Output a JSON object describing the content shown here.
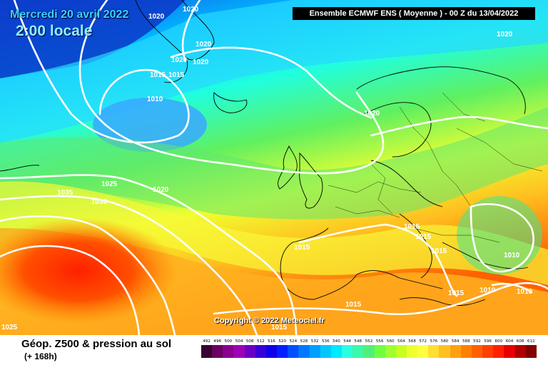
{
  "header": {
    "date": "Mercredi 20 avril 2022",
    "time": "2:00 locale",
    "model": "Ensemble ECMWF ENS  ( Moyenne )  -  00 Z du 13/04/2022"
  },
  "copyright": "Copyright © 2022 Meteociel.fr",
  "legend": {
    "title": "Géop. Z500 & pression au sol",
    "subtitle": "(+ 168h)",
    "scale_labels": [
      "492",
      "496",
      "500",
      "504",
      "508",
      "512",
      "516",
      "520",
      "524",
      "528",
      "532",
      "536",
      "540",
      "544",
      "548",
      "552",
      "556",
      "560",
      "564",
      "568",
      "572",
      "576",
      "580",
      "584",
      "588",
      "592",
      "596",
      "600",
      "604",
      "608",
      "612"
    ],
    "scale_colors": [
      "#3a0032",
      "#6a0060",
      "#8a0090",
      "#a000b8",
      "#6a00c8",
      "#3800d8",
      "#1000e8",
      "#0020ff",
      "#0050ff",
      "#0078ff",
      "#00a0ff",
      "#00c8ff",
      "#00e8ff",
      "#28ffe0",
      "#3cf8a8",
      "#50f078",
      "#70ff40",
      "#a0ff30",
      "#c8ff20",
      "#f0ff30",
      "#ffff40",
      "#ffe030",
      "#ffc020",
      "#ffa010",
      "#ff8000",
      "#ff6000",
      "#ff4000",
      "#ff2000",
      "#e80000",
      "#b00000",
      "#800000"
    ]
  },
  "isobars": {
    "iso_1020_a": "1020",
    "iso_1020_b": "1020",
    "iso_1020_c": "1020",
    "iso_1020_d": "1020",
    "iso_1020_e": "1020",
    "iso_1020_f": "1020",
    "iso_1020_g": "1020",
    "iso_1015_a": "1015",
    "iso_1015_b": "1015",
    "iso_1010_a": "1010",
    "iso_1035": "1035",
    "iso_1025_a": "1025",
    "iso_1030": "1030",
    "iso_1020_h": "1020",
    "iso_1015_c": "1015",
    "iso_1015_d": "1015",
    "iso_1015_e": "1015",
    "iso_1015_f": "1015",
    "iso_1010_b": "1010",
    "iso_1015_g": "1015",
    "iso_1010_c": "1010",
    "iso_1010_d": "1010",
    "iso_1015_h": "1015",
    "iso_1015_i": "1015",
    "iso_1025_b": "1025"
  }
}
